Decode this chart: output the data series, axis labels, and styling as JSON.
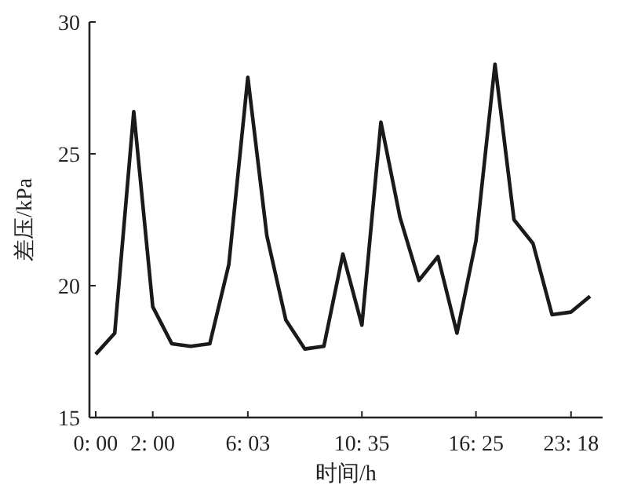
{
  "chart_data": {
    "type": "line",
    "xlabel": "时间/h",
    "ylabel": "差压/kPa",
    "ylim": [
      15,
      30
    ],
    "yticks": [
      15,
      20,
      25,
      30
    ],
    "categories": [
      "0: 00",
      null,
      null,
      "2: 00",
      null,
      null,
      null,
      null,
      "6: 03",
      null,
      null,
      null,
      null,
      null,
      "10: 35",
      null,
      null,
      null,
      null,
      null,
      "16: 25",
      null,
      null,
      null,
      null,
      "23: 18",
      null
    ],
    "grid": false,
    "marker": "none",
    "line_style": "solid",
    "series": [
      {
        "color": "#1a1a1a",
        "values": [
          17.4,
          18.2,
          26.6,
          19.2,
          17.8,
          17.7,
          17.8,
          20.8,
          27.9,
          21.9,
          18.7,
          17.6,
          17.7,
          21.2,
          18.5,
          26.2,
          22.6,
          20.2,
          21.1,
          18.2,
          21.7,
          28.4,
          22.5,
          21.6,
          18.9,
          19.0,
          19.6
        ]
      }
    ]
  }
}
